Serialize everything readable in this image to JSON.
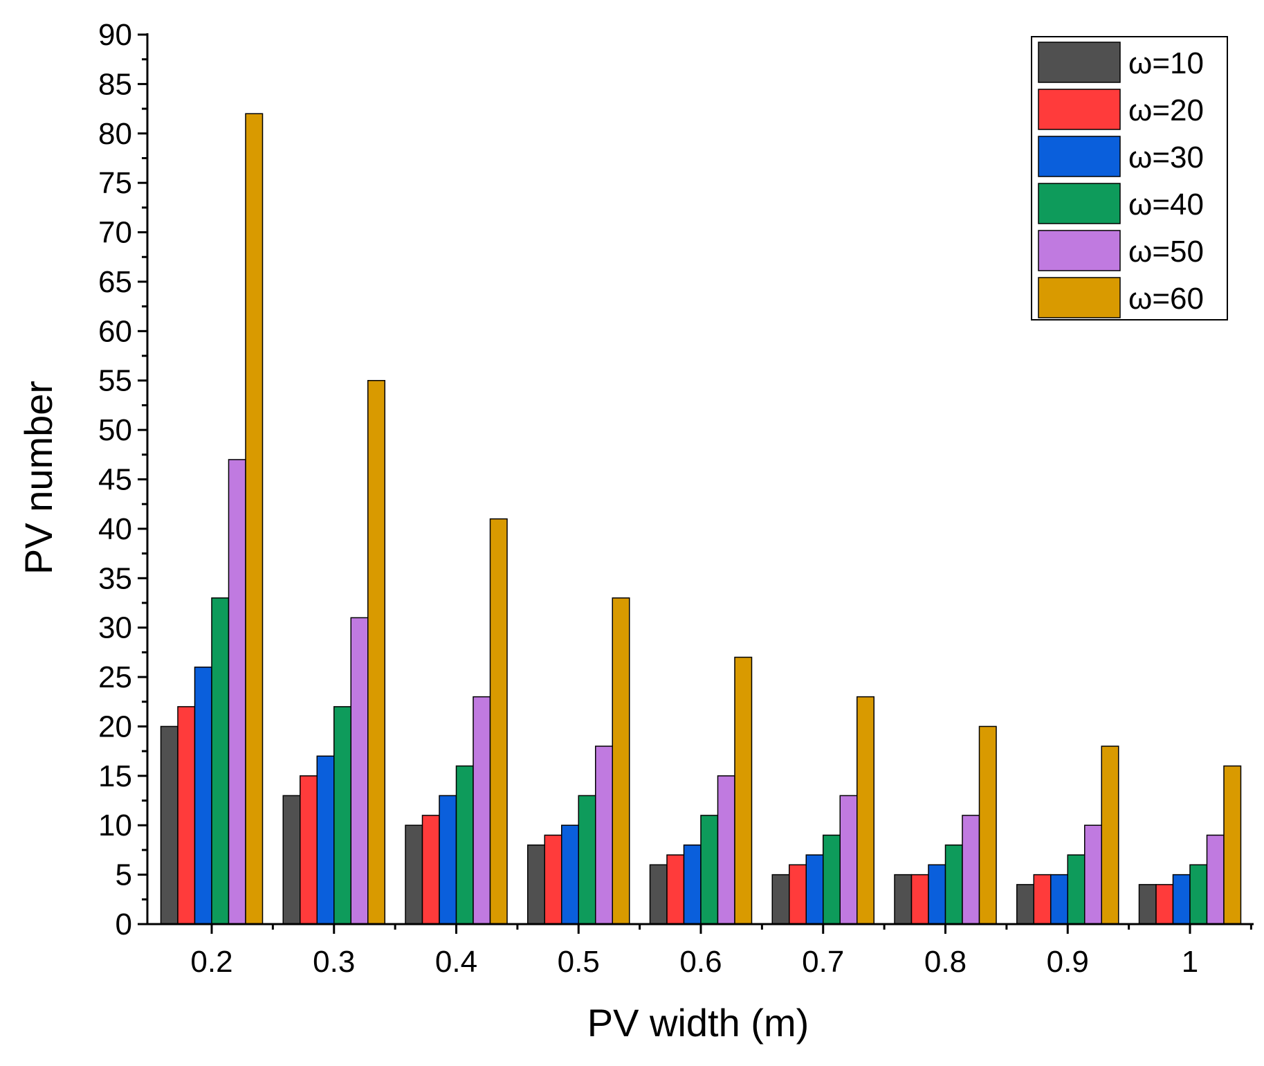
{
  "chart_data": {
    "type": "bar",
    "title": "",
    "xlabel": "PV width (m)",
    "ylabel": "PV number",
    "categories": [
      "0.2",
      "0.3",
      "0.4",
      "0.5",
      "0.6",
      "0.7",
      "0.8",
      "0.9",
      "1"
    ],
    "ylim": [
      0,
      90
    ],
    "yticks": [
      0,
      5,
      10,
      15,
      20,
      25,
      30,
      35,
      40,
      45,
      50,
      55,
      60,
      65,
      70,
      75,
      80,
      85,
      90
    ],
    "ytick_labels": [
      "0",
      "5",
      "10",
      "15",
      "20",
      "25",
      "30",
      "35",
      "40",
      "45",
      "50",
      "55",
      "60",
      "65",
      "70",
      "75",
      "80",
      "85",
      "90"
    ],
    "legend_position": "top-right",
    "series": [
      {
        "name": "ω=10",
        "color": "#505050",
        "values": [
          20,
          13,
          10,
          8,
          6,
          5,
          5,
          4,
          4
        ]
      },
      {
        "name": "ω=20",
        "color": "#ff3b3b",
        "values": [
          22,
          15,
          11,
          9,
          7,
          6,
          5,
          5,
          4
        ]
      },
      {
        "name": "ω=30",
        "color": "#0a5fdc",
        "values": [
          26,
          17,
          13,
          10,
          8,
          7,
          6,
          5,
          5
        ]
      },
      {
        "name": "ω=40",
        "color": "#0e9b5b",
        "values": [
          33,
          22,
          16,
          13,
          11,
          9,
          8,
          7,
          6
        ]
      },
      {
        "name": "ω=50",
        "color": "#c07ae0",
        "values": [
          47,
          31,
          23,
          18,
          15,
          13,
          11,
          10,
          9
        ]
      },
      {
        "name": "ω=60",
        "color": "#d99a00",
        "values": [
          82,
          55,
          41,
          33,
          27,
          23,
          20,
          18,
          16
        ]
      }
    ]
  }
}
